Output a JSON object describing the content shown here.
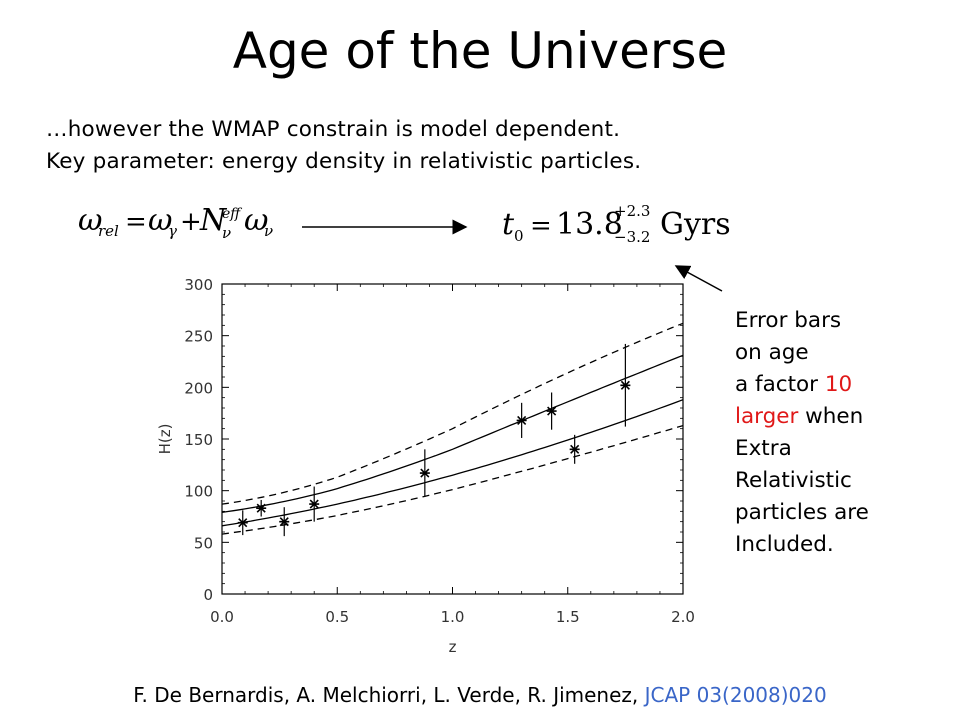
{
  "slide": {
    "title": "Age of the Universe",
    "intro_line1": "…however the WMAP constrain is model dependent.",
    "intro_line2": "Key parameter: energy density in relativistic particles.",
    "formula_omega": "ω_rel = ω_γ + N_ν^eff ω_ν",
    "formula_age": "t_0 = 13.8^{+2.3}_{-3.2} Gyrs",
    "formula_age_value": "13.8",
    "formula_age_upper": "+2.3",
    "formula_age_lower": "−3.2",
    "formula_age_unit": "Gyrs",
    "note": {
      "l1": "Error bars",
      "l2": "on age",
      "l3a": "a factor ",
      "l3b": "10",
      "l4a": "larger",
      "l4b": " when",
      "l5": "Extra",
      "l6": "Relativistic",
      "l7": "particles are",
      "l8": "Included."
    },
    "citation_authors": "F. De Bernardis, A. Melchiorri, L. Verde, R. Jimenez, ",
    "citation_journal": "JCAP 03(2008)020",
    "colors": {
      "highlight_red": "#e01818",
      "journal_blue": "#3a66c8"
    }
  },
  "chart_data": {
    "type": "scatter",
    "xlabel": "z",
    "ylabel": "H(z)",
    "xlim": [
      0.0,
      2.0
    ],
    "ylim": [
      0,
      300
    ],
    "xticks": [
      "0.0",
      "0.5",
      "1.0",
      "1.5",
      "2.0"
    ],
    "yticks": [
      "0",
      "50",
      "100",
      "150",
      "200",
      "250",
      "300"
    ],
    "points": [
      {
        "z": 0.09,
        "H": 69,
        "err": 12
      },
      {
        "z": 0.17,
        "H": 83,
        "err": 8
      },
      {
        "z": 0.27,
        "H": 70,
        "err": 14
      },
      {
        "z": 0.4,
        "H": 87,
        "err": 17
      },
      {
        "z": 0.88,
        "H": 117,
        "err": 23
      },
      {
        "z": 1.3,
        "H": 168,
        "err": 17
      },
      {
        "z": 1.43,
        "H": 177,
        "err": 18
      },
      {
        "z": 1.53,
        "H": 140,
        "err": 14
      },
      {
        "z": 1.75,
        "H": 202,
        "err": 40
      }
    ],
    "curves": [
      {
        "style": "dashed",
        "x": [
          0.0,
          0.5,
          1.0,
          1.5,
          2.0
        ],
        "y": [
          87,
          113,
          160,
          214,
          262
        ]
      },
      {
        "style": "solid",
        "x": [
          0.0,
          0.5,
          1.0,
          1.5,
          2.0
        ],
        "y": [
          79,
          102,
          140,
          186,
          231
        ]
      },
      {
        "style": "solid",
        "x": [
          0.0,
          0.5,
          1.0,
          1.5,
          2.0
        ],
        "y": [
          66,
          87,
          115,
          149,
          188
        ]
      },
      {
        "style": "dashed",
        "x": [
          0.0,
          0.5,
          1.0,
          1.5,
          2.0
        ],
        "y": [
          58,
          76,
          101,
          131,
          163
        ]
      }
    ]
  }
}
